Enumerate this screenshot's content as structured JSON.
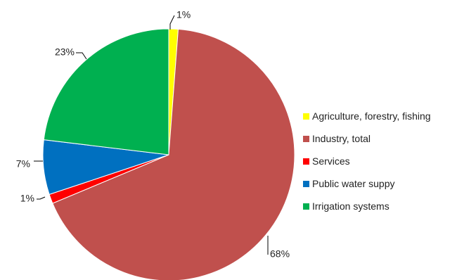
{
  "chart_data": {
    "type": "pie",
    "title": "",
    "start_angle_deg": 0,
    "direction": "clockwise",
    "legend_position": "right",
    "slices": [
      {
        "name": "Agriculture, forestry, fishing",
        "value": 1.2,
        "label": "1%",
        "color": "#ffff00"
      },
      {
        "name": "Industry, total",
        "value": 67.5,
        "label": "68%",
        "color": "#c0504d"
      },
      {
        "name": "Services",
        "value": 1.2,
        "label": "1%",
        "color": "#ff0000"
      },
      {
        "name": "Public water suppy",
        "value": 7.0,
        "label": "7%",
        "color": "#0070c0"
      },
      {
        "name": "Irrigation systems",
        "value": 23.1,
        "label": "23%",
        "color": "#00b050"
      }
    ]
  }
}
